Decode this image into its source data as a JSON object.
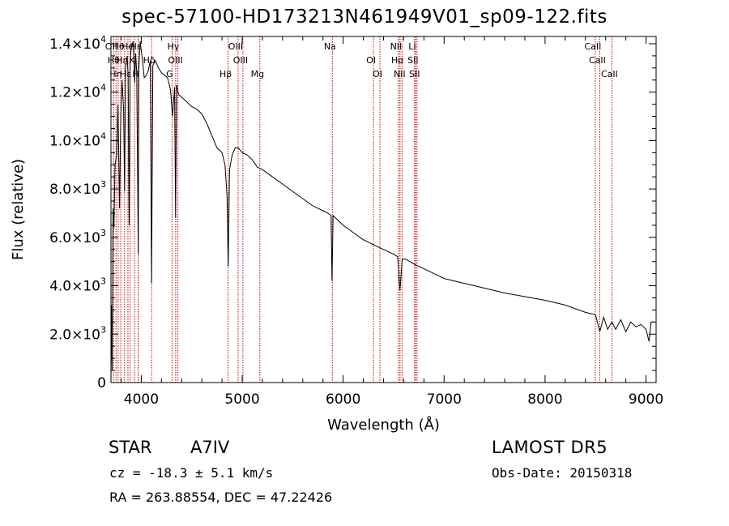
{
  "header": {
    "title": "spec-57100-HD173213N461949V01_sp09-122.fits"
  },
  "info": {
    "object_class": "STAR",
    "subclass": "A7IV",
    "survey": "LAMOST DR5",
    "cz": "cz = -18.3 ± 5.1 km/s",
    "obs_date": "Obs-Date: 20150318",
    "radec": "RA = 263.88554, DEC =  47.22426"
  },
  "chart_data": {
    "type": "line",
    "xlabel": "Wavelength (Å)",
    "ylabel": "Flux (relative)",
    "xlim": [
      3700,
      9100
    ],
    "ylim": [
      0,
      14300
    ],
    "x_ticks": [
      {
        "v": 4000,
        "label": "4000"
      },
      {
        "v": 5000,
        "label": "5000"
      },
      {
        "v": 6000,
        "label": "6000"
      },
      {
        "v": 7000,
        "label": "7000"
      },
      {
        "v": 8000,
        "label": "8000"
      },
      {
        "v": 9000,
        "label": "9000"
      }
    ],
    "y_ticks": [
      {
        "v": 0,
        "mant": "0",
        "exp": ""
      },
      {
        "v": 2000,
        "mant": "2.0×10",
        "exp": "3"
      },
      {
        "v": 4000,
        "mant": "4.0×10",
        "exp": "3"
      },
      {
        "v": 6000,
        "mant": "6.0×10",
        "exp": "3"
      },
      {
        "v": 8000,
        "mant": "8.0×10",
        "exp": "3"
      },
      {
        "v": 10000,
        "mant": "1.0×10",
        "exp": "4"
      },
      {
        "v": 12000,
        "mant": "1.2×10",
        "exp": "4"
      },
      {
        "v": 14000,
        "mant": "1.4×10",
        "exp": "4"
      }
    ],
    "series": [
      {
        "color": "#000000",
        "x": [
          3700,
          3705,
          3712,
          3720,
          3730,
          3740,
          3755,
          3770,
          3785,
          3797,
          3810,
          3825,
          3835,
          3845,
          3860,
          3870,
          3880,
          3889,
          3900,
          3920,
          3935,
          3945,
          3955,
          3965,
          3970,
          3975,
          3990,
          4010,
          4030,
          4050,
          4070,
          4090,
          4102,
          4115,
          4140,
          4170,
          4200,
          4230,
          4260,
          4290,
          4310,
          4330,
          4340,
          4350,
          4370,
          4400,
          4450,
          4500,
          4550,
          4600,
          4650,
          4700,
          4750,
          4800,
          4830,
          4850,
          4861,
          4875,
          4900,
          4930,
          4960,
          5000,
          5050,
          5100,
          5150,
          5200,
          5300,
          5400,
          5500,
          5600,
          5700,
          5800,
          5850,
          5880,
          5890,
          5900,
          5950,
          6000,
          6100,
          6200,
          6300,
          6400,
          6500,
          6540,
          6563,
          6585,
          6620,
          6700,
          6800,
          6900,
          7000,
          7200,
          7400,
          7600,
          7800,
          8000,
          8200,
          8400,
          8500,
          8542,
          8580,
          8620,
          8662,
          8700,
          8750,
          8800,
          8850,
          8900,
          8950,
          9000,
          9030,
          9050,
          9080
        ],
        "y": [
          0,
          3200,
          500,
          7200,
          6400,
          9000,
          9400,
          11500,
          7200,
          11000,
          12500,
          11300,
          7900,
          13100,
          13500,
          12700,
          6500,
          13200,
          13800,
          14100,
          12400,
          13600,
          12800,
          8100,
          5300,
          12900,
          14100,
          13400,
          12600,
          12700,
          12900,
          13300,
          4100,
          13100,
          13300,
          13000,
          12800,
          12700,
          12600,
          12100,
          11000,
          12200,
          6800,
          12300,
          11900,
          11800,
          11600,
          11400,
          11300,
          11100,
          10700,
          10200,
          9700,
          9500,
          9000,
          7700,
          4800,
          8800,
          9400,
          9700,
          9700,
          9500,
          9400,
          9200,
          8900,
          8800,
          8500,
          8200,
          7900,
          7600,
          7300,
          7100,
          7000,
          6900,
          4200,
          6900,
          6700,
          6500,
          6200,
          5900,
          5700,
          5500,
          5300,
          5200,
          3800,
          5100,
          5100,
          4900,
          4700,
          4500,
          4300,
          4100,
          3900,
          3700,
          3550,
          3400,
          3200,
          2900,
          2800,
          2100,
          2700,
          2200,
          2500,
          2200,
          2600,
          2100,
          2500,
          2300,
          2400,
          2200,
          1700,
          2500,
          2500
        ]
      }
    ],
    "lines": [
      {
        "w": 3727,
        "label": "OII"
      },
      {
        "w": 3750,
        "label": "Hθ"
      },
      {
        "w": 3771,
        "label": "Hη"
      },
      {
        "w": 3797,
        "label": "Hθ"
      },
      {
        "w": 3835,
        "label": "Hη"
      },
      {
        "w": 3868,
        "label": "Hε"
      },
      {
        "w": 3889,
        "label": "He"
      },
      {
        "w": 3934,
        "label": "K"
      },
      {
        "w": 3969,
        "label": "H"
      },
      {
        "w": 3970,
        "label": "Hε"
      },
      {
        "w": 4102,
        "label": "Hδ"
      },
      {
        "w": 4305,
        "label": "G"
      },
      {
        "w": 4341,
        "label": "Hγ"
      },
      {
        "w": 4363,
        "label": "OIII"
      },
      {
        "w": 4861,
        "label": "Hβ"
      },
      {
        "w": 4959,
        "label": "OIII"
      },
      {
        "w": 5007,
        "label": "OIII"
      },
      {
        "w": 5175,
        "label": "Mg"
      },
      {
        "w": 5893,
        "label": "Na"
      },
      {
        "w": 6300,
        "label": "OI"
      },
      {
        "w": 6364,
        "label": "OI"
      },
      {
        "w": 6548,
        "label": "NII"
      },
      {
        "w": 6563,
        "label": "Hα"
      },
      {
        "w": 6583,
        "label": "NII"
      },
      {
        "w": 6708,
        "label": "Li"
      },
      {
        "w": 6716,
        "label": "SII"
      },
      {
        "w": 6731,
        "label": "SII"
      },
      {
        "w": 8498,
        "label": "CaII"
      },
      {
        "w": 8542,
        "label": "CaII"
      },
      {
        "w": 8662,
        "label": "CaII"
      }
    ],
    "line_color": "#cc0000",
    "grid": false
  }
}
